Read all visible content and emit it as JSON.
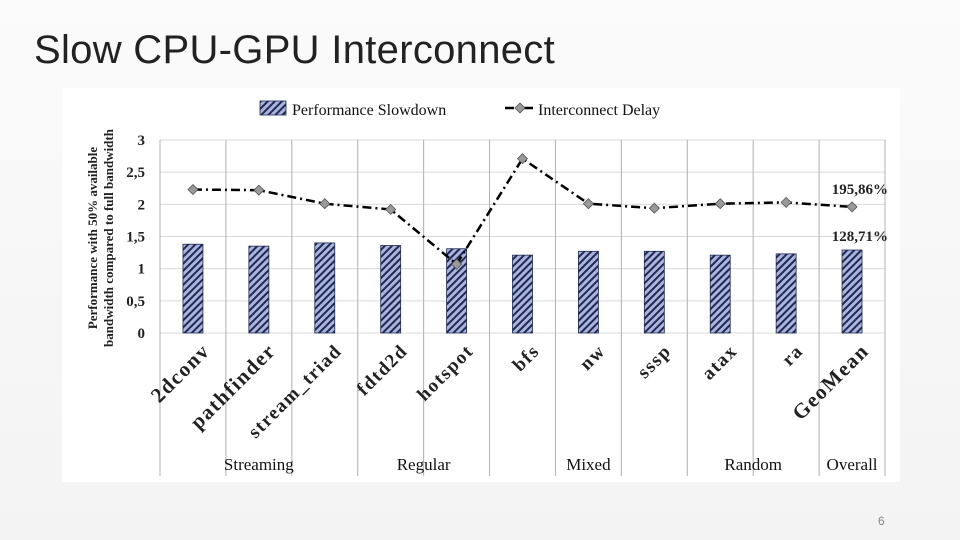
{
  "slide": {
    "title": "Slow CPU-GPU Interconnect",
    "page_number": "6"
  },
  "chart_data": {
    "type": "bar",
    "ylabel_lines": [
      "Performance with 50% available",
      "bandwidth compared to full bandwidth"
    ],
    "ylim": [
      0,
      3
    ],
    "yticks": [
      "0",
      "0,5",
      "1",
      "1,5",
      "2",
      "2,5",
      "3"
    ],
    "grid": true,
    "legend_position": "top",
    "categories": [
      "2dconv",
      "pathfinder",
      "stream_triad",
      "fdtd2d",
      "hotspot",
      "bfs",
      "nw",
      "sssp",
      "atax",
      "ra",
      "GeoMean"
    ],
    "series": [
      {
        "name": "Performance Slowdown",
        "kind": "bar",
        "values": [
          1.38,
          1.35,
          1.4,
          1.36,
          1.31,
          1.21,
          1.27,
          1.27,
          1.21,
          1.23,
          1.29
        ]
      },
      {
        "name": "Interconnect Delay",
        "kind": "line",
        "values": [
          2.23,
          2.22,
          2.01,
          1.92,
          1.07,
          2.71,
          2.01,
          1.94,
          2.01,
          2.03,
          1.96
        ]
      }
    ],
    "annotations": [
      "195,86%",
      "128,71%"
    ],
    "groups": [
      {
        "label": "Streaming",
        "categories": [
          "2dconv",
          "pathfinder",
          "stream_triad"
        ]
      },
      {
        "label": "Regular",
        "categories": [
          "fdtd2d",
          "hotspot"
        ]
      },
      {
        "label": "Mixed",
        "categories": [
          "bfs",
          "nw",
          "sssp"
        ]
      },
      {
        "label": "Random",
        "categories": [
          "atax",
          "ra"
        ]
      },
      {
        "label": "Overall",
        "categories": [
          "GeoMean"
        ]
      }
    ],
    "colors": {
      "bar_fill": "#aab4dc",
      "bar_hatch": "#1f2a52",
      "line": "#000000",
      "marker": "#9a9a9a",
      "grid": "#d9d9d9",
      "separator": "#b0b0b0"
    }
  }
}
